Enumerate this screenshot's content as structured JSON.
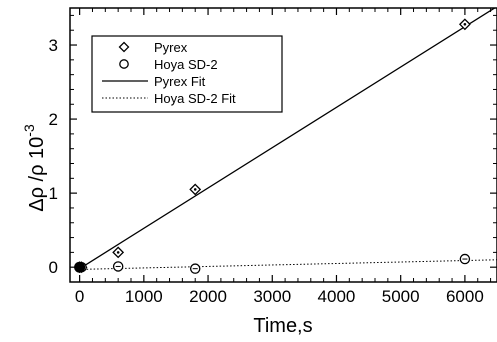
{
  "chart_data": {
    "type": "scatter",
    "xlabel": "Time,s",
    "ylabel_main": "Δρ /ρ 10",
    "ylabel_exponent": "-3",
    "xlim": [
      -150,
      6500
    ],
    "ylim": [
      -0.2,
      3.5
    ],
    "xticks": [
      0,
      1000,
      2000,
      3000,
      4000,
      5000,
      6000
    ],
    "yticks": [
      0,
      1,
      2,
      3
    ],
    "series": [
      {
        "name": "Pyrex",
        "kind": "points",
        "marker": "diamond",
        "x": [
          0,
          30,
          600,
          1800,
          6000
        ],
        "y": [
          0,
          0,
          0.2,
          1.05,
          3.28
        ]
      },
      {
        "name": "Hoya SD-2",
        "kind": "points",
        "marker": "circle",
        "x": [
          0,
          30,
          600,
          1800,
          6000
        ],
        "y": [
          0,
          0,
          0.01,
          -0.02,
          0.11
        ]
      },
      {
        "name": "Pyrex Fit",
        "kind": "line",
        "style": "solid",
        "x": [
          0,
          6500
        ],
        "y": [
          -0.02,
          3.52
        ]
      },
      {
        "name": "Hoya SD-2 Fit",
        "kind": "line",
        "style": "dotted",
        "x": [
          0,
          6500
        ],
        "y": [
          -0.03,
          0.1
        ]
      }
    ],
    "legend_position": "top-left",
    "grid": false
  }
}
